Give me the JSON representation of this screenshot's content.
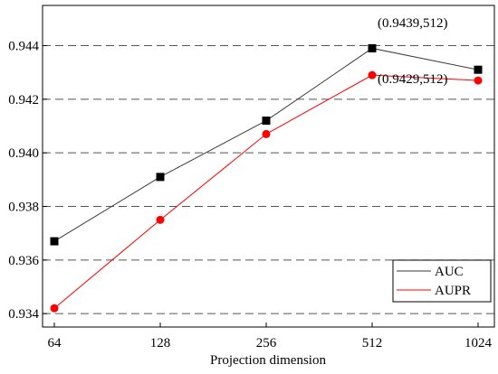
{
  "chart_data": {
    "type": "line",
    "title": "",
    "xlabel": "Projection dimension",
    "ylabel": "",
    "categories": [
      "64",
      "128",
      "256",
      "512",
      "1024"
    ],
    "ylim": [
      0.9335,
      0.9455
    ],
    "yticks": [
      "0.934",
      "0.936",
      "0.938",
      "0.940",
      "0.942",
      "0.944"
    ],
    "grid": "horizontal dashed",
    "legend_position": "bottom-right",
    "series": [
      {
        "name": "AUC",
        "values": [
          0.9367,
          0.9391,
          0.9412,
          0.9439,
          0.9431
        ],
        "color": "#3a3a3a",
        "marker": "square"
      },
      {
        "name": "AUPR",
        "values": [
          0.9342,
          0.9375,
          0.9407,
          0.9429,
          0.9427
        ],
        "color": "#ff0000",
        "marker": "circle"
      }
    ],
    "annotations": [
      {
        "text": "(0.9439,512)",
        "series": "AUC",
        "category": "512"
      },
      {
        "text": "(0.9429,512)",
        "series": "AUPR",
        "category": "512"
      }
    ]
  }
}
